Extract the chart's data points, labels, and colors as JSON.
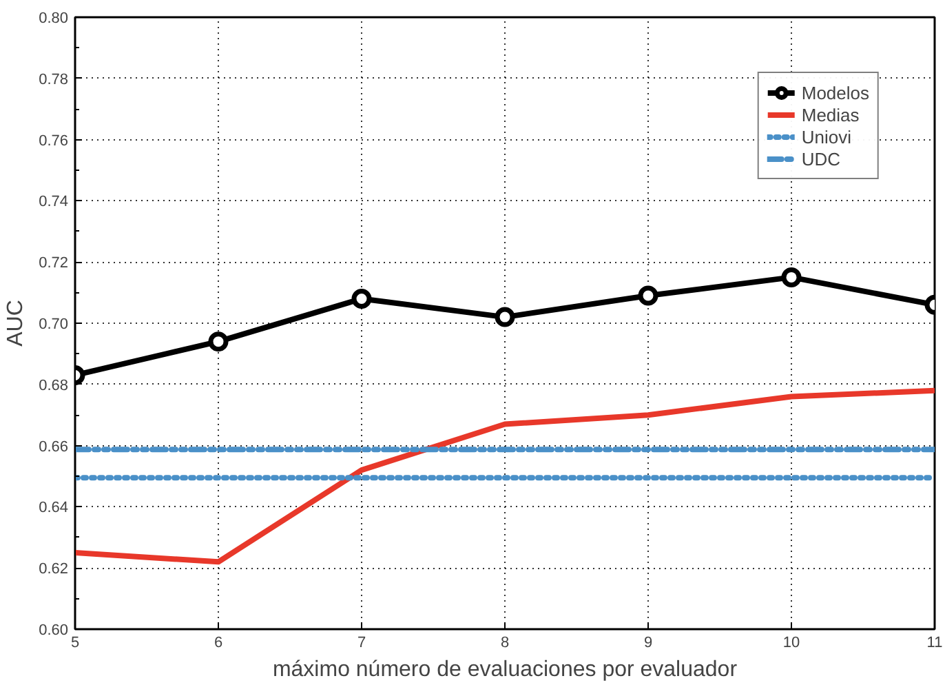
{
  "chart_data": {
    "type": "line",
    "xlabel": "máximo número de evaluaciones por evaluador",
    "ylabel": "AUC",
    "x": [
      5,
      6,
      7,
      8,
      9,
      10,
      11
    ],
    "series": [
      {
        "name": "Modelos",
        "color": "#000000",
        "marker": "circle",
        "line_style": "solid",
        "values": [
          0.683,
          0.694,
          0.708,
          0.702,
          0.709,
          0.715,
          0.706
        ]
      },
      {
        "name": "Medias",
        "color": "#e8382a",
        "marker": "none",
        "line_style": "solid",
        "values": [
          0.625,
          0.622,
          0.652,
          0.667,
          0.67,
          0.676,
          0.678
        ]
      },
      {
        "name": "Uniovi",
        "color": "#4a90c8",
        "marker": "none",
        "line_style": "dotted",
        "values": [
          0.6495,
          0.6495,
          0.6495,
          0.6495,
          0.6495,
          0.6495,
          0.6495
        ]
      },
      {
        "name": "UDC",
        "color": "#4a90c8",
        "marker": "none",
        "line_style": "dashdot",
        "values": [
          0.6587,
          0.6587,
          0.6587,
          0.6587,
          0.6587,
          0.6587,
          0.6587
        ]
      }
    ],
    "xlim": [
      5,
      11
    ],
    "xticks": [
      5,
      6,
      7,
      8,
      9,
      10,
      11
    ],
    "ylim": [
      0.6,
      0.8
    ],
    "yticks": [
      {
        "value": 0.6,
        "label": "0.60"
      },
      {
        "value": 0.62,
        "label": "0.62"
      },
      {
        "value": 0.64,
        "label": "0.64"
      },
      {
        "value": 0.66,
        "label": "0.66"
      },
      {
        "value": 0.68,
        "label": "0.68"
      },
      {
        "value": 0.7,
        "label": "0.70"
      },
      {
        "value": 0.72,
        "label": "0.72"
      },
      {
        "value": 0.74,
        "label": "0.74"
      },
      {
        "value": 0.76,
        "label": "0.76"
      },
      {
        "value": 0.78,
        "label": "0.78"
      },
      {
        "value": 0.8,
        "label": "0.80"
      }
    ],
    "grid": true,
    "legend": "top right"
  }
}
